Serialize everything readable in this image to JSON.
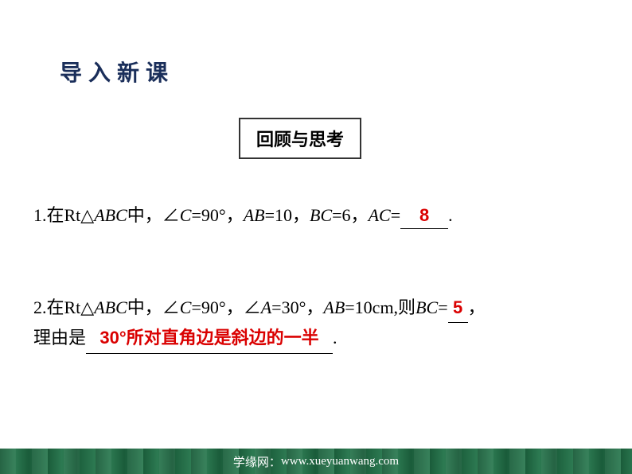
{
  "slide": {
    "title": "导入新课",
    "callout": "回顾与思考",
    "q1": {
      "prefix": "1.在Rt△",
      "abc": "ABC",
      "mid1": "中，∠",
      "c": "C",
      "mid2": "=90°，",
      "ab": "AB",
      "mid3": "=10，",
      "bc": "BC",
      "mid4": "=6，",
      "ac": "AC",
      "mid5": "=",
      "answer": "8",
      "suffix": "."
    },
    "q2": {
      "prefix": "2.在Rt△",
      "abc": "ABC",
      "mid1": "中，∠",
      "c": "C",
      "mid2": "=90°，∠",
      "a": "A",
      "mid3": "=30°，",
      "ab": "AB",
      "mid4": "=10cm,则",
      "bc": "BC",
      "mid5": "=",
      "answer1": "5",
      "comma": "，",
      "reason_label": "理由是",
      "reason": "30°所对直角边是斜边的一半",
      "suffix": "."
    },
    "footer": {
      "label": "学缘网：",
      "url": "www.xueyuanwang.com"
    }
  },
  "colors": {
    "title_color": "#1a2e5a",
    "answer_color": "#da0000",
    "footer_bg": "#1a5c3a",
    "footer_text": "#ffffff"
  }
}
